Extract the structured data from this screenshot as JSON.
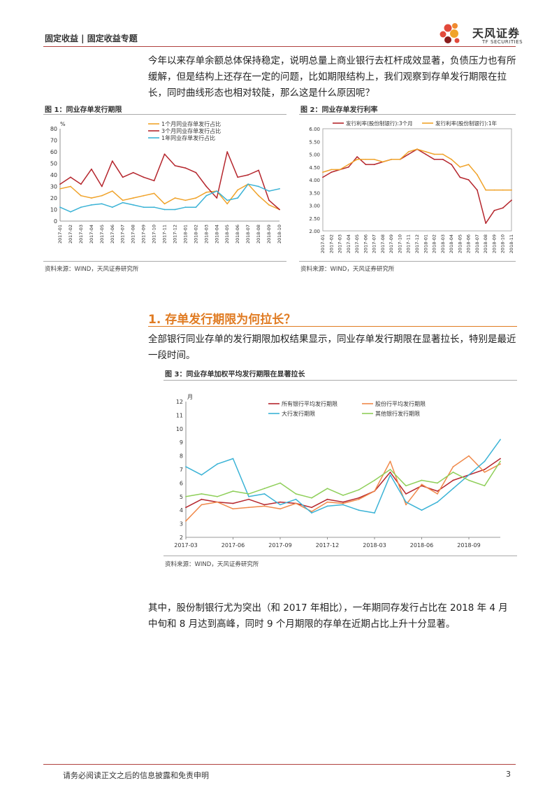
{
  "header": {
    "breadcrumb": "固定收益 | 固定收益专题"
  },
  "logo": {
    "name_cn": "天风证券",
    "name_en": "TF SECURITIES"
  },
  "intro_paragraph": "今年以来存单余额总体保持稳定，说明总量上商业银行去杠杆成效显著，负债压力也有所缓解，但是结构上还存在一定的问题，比如期限结构上，我们观察到存单发行期限在拉长，同时曲线形态也相对较陡，那么这是什么原因呢？",
  "figures": {
    "fig1": {
      "title": "图 1：同业存单发行期限",
      "source": "资料来源：WIND，天风证券研究所"
    },
    "fig2": {
      "title": "图 2：同业存单发行利率",
      "source": "资料来源：WIND，天风证券研究所"
    },
    "fig3": {
      "title": "图 3：同业存单加权平均发行期限在显著拉长",
      "source": "资料来源：WIND，天风证券研究所"
    }
  },
  "section": {
    "title": "1. 存单发行期限为何拉长？"
  },
  "section_paragraph": "全部银行同业存单的发行期限加权结果显示，同业存单发行期限在显著拉长，特别是最近一段时间。",
  "closing_paragraph": "其中，股份制银行尤为突出（和 2017 年相比），一年期同存发行占比在 2018 年 4 月中旬和 8 月达到高峰，同时 9 个月期限的存单在近期占比上升十分显著。",
  "footer": {
    "disclaimer": "请务必阅读正文之后的信息披露和免责申明",
    "page": "3"
  },
  "chart_data": [
    {
      "type": "line",
      "ylabel": "%",
      "ylim": [
        0,
        80
      ],
      "yticks": [
        "0",
        "10",
        "20",
        "30",
        "40",
        "50",
        "60",
        "70",
        "80"
      ],
      "categories": [
        "2017-01",
        "2017-02",
        "2017-03",
        "2017-04",
        "2017-05",
        "2017-06",
        "2017-07",
        "2017-08",
        "2017-09",
        "2017-10",
        "2017-11",
        "2017-12",
        "2018-01",
        "2018-02",
        "2018-03",
        "2018-04",
        "2018-05",
        "2018-06",
        "2018-07",
        "2018-08",
        "2018-09",
        "2018-10"
      ],
      "colors": [
        "#f0a32a",
        "#b5262d",
        "#3bb3d6"
      ],
      "series": [
        {
          "name": "1个月同业存单发行占比",
          "values": [
            28,
            30,
            22,
            20,
            22,
            26,
            18,
            20,
            22,
            24,
            15,
            20,
            18,
            20,
            25,
            26,
            15,
            27,
            32,
            22,
            14,
            10
          ]
        },
        {
          "name": "3个月同业存单发行占比",
          "values": [
            32,
            38,
            32,
            45,
            30,
            52,
            38,
            42,
            38,
            35,
            58,
            48,
            46,
            42,
            30,
            20,
            60,
            38,
            40,
            44,
            18,
            10
          ]
        },
        {
          "name": "1年同业存单发行占比",
          "values": [
            12,
            8,
            12,
            14,
            15,
            12,
            16,
            14,
            12,
            12,
            10,
            10,
            12,
            12,
            22,
            26,
            18,
            20,
            32,
            30,
            26,
            28
          ]
        }
      ]
    },
    {
      "type": "line",
      "ylim": [
        2.0,
        6.0
      ],
      "yticks": [
        "2.00",
        "2.50",
        "3.00",
        "3.50",
        "4.00",
        "4.50",
        "5.00",
        "5.50",
        "6.00"
      ],
      "categories": [
        "2017-01",
        "2017-02",
        "2017-03",
        "2017-04",
        "2017-05",
        "2017-06",
        "2017-07",
        "2017-08",
        "2017-09",
        "2017-10",
        "2017-11",
        "2017-12",
        "2018-01",
        "2018-02",
        "2018-03",
        "2018-04",
        "2018-05",
        "2018-06",
        "2018-07",
        "2018-08",
        "2018-09",
        "2018-10",
        "2018-11"
      ],
      "colors": [
        "#b5262d",
        "#f0a32a"
      ],
      "series": [
        {
          "name": "发行利率(股份制银行):3个月",
          "values": [
            4.1,
            4.3,
            4.4,
            4.5,
            4.9,
            4.6,
            4.6,
            4.7,
            4.8,
            4.8,
            5.0,
            5.2,
            5.0,
            4.8,
            4.8,
            4.6,
            4.1,
            4.0,
            3.6,
            2.3,
            2.8,
            2.9,
            3.2
          ]
        },
        {
          "name": "发行利率(股份制银行):1年",
          "values": [
            4.3,
            4.4,
            4.4,
            4.6,
            4.8,
            4.8,
            4.8,
            4.7,
            4.8,
            4.8,
            5.1,
            5.2,
            5.1,
            5.0,
            5.0,
            4.8,
            4.5,
            4.6,
            4.2,
            3.6,
            3.6,
            3.6,
            3.6
          ]
        }
      ]
    },
    {
      "type": "line",
      "ylabel": "月",
      "ylim": [
        2,
        12
      ],
      "yticks": [
        "2",
        "3",
        "4",
        "5",
        "6",
        "7",
        "8",
        "9",
        "10",
        "11",
        "12"
      ],
      "xticks": [
        "2017-03",
        "2017-06",
        "2017-09",
        "2017-12",
        "2018-03",
        "2018-06",
        "2018-09"
      ],
      "x": [
        "2017-03",
        "2017-04",
        "2017-05",
        "2017-06",
        "2017-07",
        "2017-08",
        "2017-09",
        "2017-10",
        "2017-11",
        "2017-12",
        "2018-01",
        "2018-02",
        "2018-03",
        "2018-04",
        "2018-05",
        "2018-06",
        "2018-07",
        "2018-08",
        "2018-09",
        "2018-10",
        "2018-11"
      ],
      "colors": [
        "#b5262d",
        "#f0894a",
        "#3bb3d6",
        "#8fcf5a"
      ],
      "series": [
        {
          "name": "所有银行平均发行期限",
          "values": [
            4.2,
            4.8,
            4.6,
            4.5,
            4.8,
            4.4,
            4.6,
            4.5,
            4.2,
            4.8,
            4.6,
            4.9,
            5.4,
            6.8,
            5.2,
            5.8,
            5.4,
            6.2,
            6.6,
            7.0,
            7.8
          ]
        },
        {
          "name": "股份行平均发行期限",
          "values": [
            3.2,
            4.4,
            4.6,
            4.1,
            4.2,
            4.3,
            4.1,
            4.5,
            3.9,
            4.6,
            4.5,
            4.8,
            5.4,
            7.6,
            4.4,
            5.9,
            5.2,
            7.2,
            8.0,
            6.8,
            7.4
          ]
        },
        {
          "name": "大行发行期限",
          "values": [
            7.2,
            6.6,
            7.4,
            7.8,
            5.0,
            5.2,
            4.4,
            4.8,
            3.8,
            4.3,
            4.4,
            4.0,
            3.8,
            6.6,
            4.6,
            4.0,
            4.6,
            5.6,
            6.6,
            7.6,
            9.2
          ]
        },
        {
          "name": "其他银行发行期限",
          "values": [
            5.0,
            5.2,
            5.0,
            5.4,
            5.2,
            5.6,
            6.0,
            5.2,
            4.9,
            5.6,
            5.1,
            5.5,
            6.2,
            7.0,
            5.8,
            6.2,
            6.0,
            6.8,
            6.2,
            5.8,
            7.6
          ]
        }
      ]
    }
  ]
}
